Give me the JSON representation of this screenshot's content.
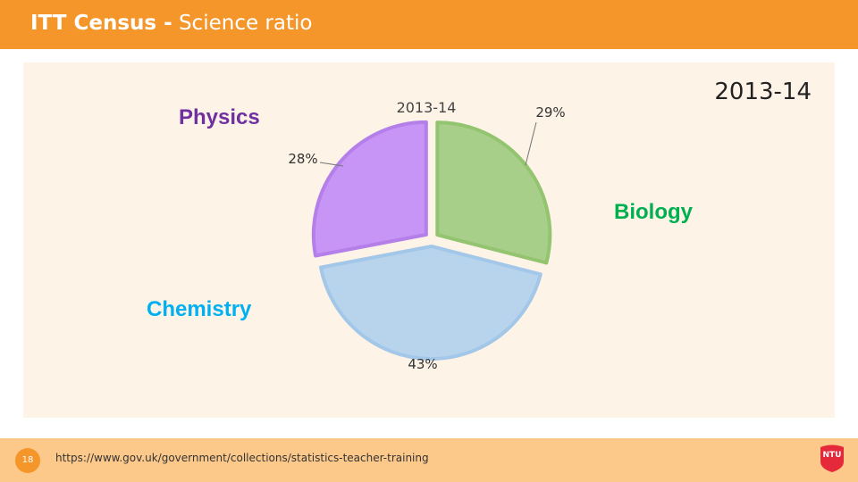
{
  "header": {
    "title_bold": "ITT Census -",
    "title_rest": " Science ratio"
  },
  "chart_heading": "2013-14",
  "category_labels": {
    "physics": "Physics",
    "biology": "Biology",
    "chemistry": "Chemistry"
  },
  "footer": {
    "page_number": "18",
    "source_url": "https://www.gov.uk/government/collections/statistics-teacher-training",
    "logo_text": "NTU"
  },
  "colors": {
    "header_bg": "#f5962a",
    "footer_bg": "#fcc98a",
    "panel_bg": "#fdf3e7",
    "physics_label": "#7030a0",
    "biology_label": "#00b050",
    "chemistry_label": "#00b0f0",
    "logo": "#e5283a"
  },
  "chart_data": {
    "type": "pie",
    "title": "2013-14",
    "categories": [
      "Biology",
      "Chemistry",
      "Physics"
    ],
    "values": [
      29,
      43,
      28
    ],
    "data_labels": [
      "29%",
      "43%",
      "28%"
    ],
    "colors": [
      "#a7cf8a",
      "#b8d4ec",
      "#c795f5"
    ],
    "border_colors": [
      "#93c46f",
      "#a3c7e8",
      "#b57fea"
    ],
    "start_angle_deg": 0,
    "exploded": true
  }
}
